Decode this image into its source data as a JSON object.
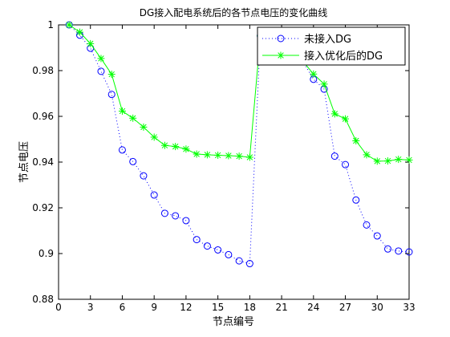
{
  "chart_data": {
    "type": "line",
    "title": "DG接入配电系统后的各节点电压的变化曲线",
    "xlabel": "节点编号",
    "ylabel": "节点电压",
    "xlim": [
      0,
      33
    ],
    "ylim": [
      0.88,
      1.0
    ],
    "xticks": [
      0,
      3,
      6,
      9,
      12,
      15,
      18,
      21,
      24,
      27,
      30,
      33
    ],
    "yticks": [
      0.88,
      0.9,
      0.92,
      0.94,
      0.96,
      0.98,
      1
    ],
    "ytick_labels": [
      "0.88",
      "0.9",
      "0.92",
      "0.94",
      "0.96",
      "0.98",
      "1"
    ],
    "grid": false,
    "legend_position": "top-right",
    "x": [
      1,
      2,
      3,
      4,
      5,
      6,
      7,
      8,
      9,
      10,
      11,
      12,
      13,
      14,
      15,
      16,
      17,
      18,
      19,
      20,
      21,
      22,
      23,
      24,
      25,
      26,
      27,
      28,
      29,
      30,
      31,
      32,
      33
    ],
    "series": [
      {
        "name": "未接入DG",
        "color": "#0000ff",
        "line_style": "dotted",
        "marker": "circle",
        "values": [
          1.0,
          0.9955,
          0.9898,
          0.9797,
          0.9696,
          0.9453,
          0.9402,
          0.934,
          0.9256,
          0.9176,
          0.9165,
          0.9144,
          0.9061,
          0.9033,
          0.9016,
          0.8995,
          0.8968,
          0.8956,
          0.9952,
          0.9952,
          0.9852,
          0.9848,
          0.9841,
          0.9762,
          0.9719,
          0.9426,
          0.9389,
          0.9234,
          0.9125,
          0.9077,
          0.902,
          0.9011,
          0.9007
        ]
      },
      {
        "name": "接入优化后的DG",
        "color": "#00ff00",
        "line_style": "solid",
        "marker": "star",
        "values": [
          1.0,
          0.9968,
          0.9918,
          0.9853,
          0.9784,
          0.9623,
          0.9592,
          0.9553,
          0.9509,
          0.9473,
          0.9468,
          0.9457,
          0.9435,
          0.9432,
          0.943,
          0.9428,
          0.9426,
          0.9421,
          0.9952,
          0.9952,
          0.9852,
          0.9848,
          0.9841,
          0.9785,
          0.9741,
          0.9611,
          0.9589,
          0.9493,
          0.9432,
          0.9404,
          0.9405,
          0.9412,
          0.9409
        ]
      }
    ]
  }
}
